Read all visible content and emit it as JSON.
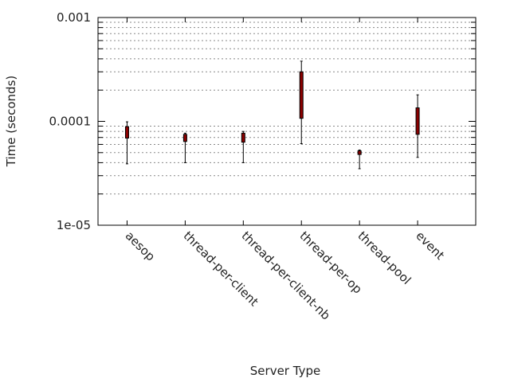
{
  "chart_data": {
    "type": "box",
    "title": "",
    "xlabel": "Server Type",
    "ylabel": "Time (seconds)",
    "y_scale": "log",
    "ylim": [
      1e-05,
      0.001
    ],
    "y_ticks": [
      {
        "value": 0.001,
        "label": "0.001"
      },
      {
        "value": 0.0001,
        "label": "0.0001"
      },
      {
        "value": 1e-05,
        "label": "1e-05"
      }
    ],
    "x_range": [
      0.5,
      7.0
    ],
    "grid": "horizontal dashed at minor log ticks",
    "categories": [
      "aesop",
      "thread-per-client",
      "thread-per-client-nb",
      "thread-per-op",
      "thread-pool",
      "event"
    ],
    "boxes": [
      {
        "category": "aesop",
        "whisker_low": 3.9e-05,
        "q1": 6.9e-05,
        "q3": 8.9e-05,
        "whisker_high": 9.9e-05
      },
      {
        "category": "thread-per-client",
        "whisker_low": 4e-05,
        "q1": 6.4e-05,
        "q3": 7.5e-05,
        "whisker_high": 7.7e-05
      },
      {
        "category": "thread-per-client-nb",
        "whisker_low": 4e-05,
        "q1": 6.3e-05,
        "q3": 7.7e-05,
        "whisker_high": 8e-05
      },
      {
        "category": "thread-per-op",
        "whisker_low": 6.1e-05,
        "q1": 0.000107,
        "q3": 0.0003,
        "whisker_high": 0.00038
      },
      {
        "category": "thread-pool",
        "whisker_low": 3.5e-05,
        "q1": 4.8e-05,
        "q3": 5.2e-05,
        "whisker_high": 5.3e-05
      },
      {
        "category": "event",
        "whisker_low": 4.5e-05,
        "q1": 7.5e-05,
        "q3": 0.000135,
        "whisker_high": 0.00018
      }
    ],
    "colors": {
      "box_fill": "#8b0000",
      "box_edge": "#000000",
      "whisker": "#000000",
      "grid": "#888888",
      "axis": "#000000"
    }
  }
}
